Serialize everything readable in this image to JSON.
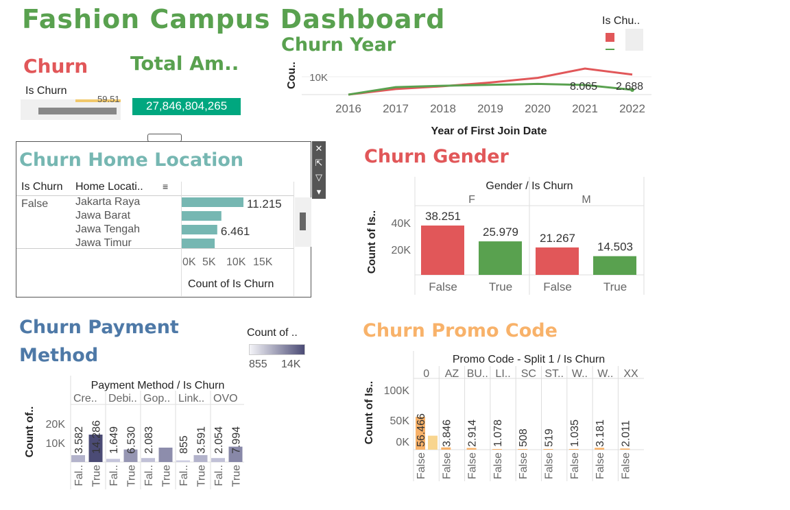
{
  "dashboard": {
    "title": "Fashion Campus Dashboard"
  },
  "colors": {
    "false": "#e15759",
    "true": "#59a14f",
    "teal": "#76b7b2",
    "blue": "#4e79a7",
    "orange": "#f8b26a",
    "purple_dark": "#4b4b75",
    "purple_light": "#d9d9e8"
  },
  "churn_kpi": {
    "title": "Churn",
    "header": "Is Churn",
    "partial_value": "59.51"
  },
  "total_amount": {
    "title": "Total Am..",
    "value": "27,846,804,265"
  },
  "churn_year": {
    "title": "Churn Year",
    "legend_title": "Is Chu..",
    "chart_data": {
      "type": "line",
      "x": [
        2016,
        2017,
        2018,
        2019,
        2020,
        2021,
        2022
      ],
      "series": [
        {
          "values": [
            6000,
            7200,
            7800,
            8600,
            9600,
            11600,
            10300
          ]
        },
        {
          "values": [
            6000,
            7600,
            7900,
            8100,
            8300,
            8065,
            2688
          ]
        }
      ],
      "y_ticks": [
        "10K"
      ],
      "ylabel": "Cou..",
      "xlabel": "Year of First Join Date",
      "data_labels": [
        "8.065",
        "2.688"
      ]
    }
  },
  "home_location": {
    "title": "Churn Home Location",
    "col_is_churn": "Is Churn",
    "col_location": "Home Locati..",
    "row_value": "False",
    "chart_data": {
      "type": "bar",
      "categories": [
        "Jakarta Raya",
        "Jawa Barat",
        "Jawa Tengah",
        "Jawa Timur"
      ],
      "values": [
        11215,
        7200,
        6461,
        6000
      ],
      "data_labels": [
        "11.215",
        "",
        "6.461",
        ""
      ],
      "x_ticks": [
        "0K",
        "5K",
        "10K",
        "15K"
      ],
      "xlabel": "Count of Is Churn"
    }
  },
  "gender": {
    "title": "Churn Gender",
    "header": "Gender / Is Churn",
    "groups": [
      "F",
      "M"
    ],
    "chart_data": {
      "type": "bar",
      "categories": [
        "False",
        "True",
        "False",
        "True"
      ],
      "values": [
        38251,
        25979,
        21267,
        14503
      ],
      "data_labels": [
        "38.251",
        "25.979",
        "21.267",
        "14.503"
      ],
      "y_ticks": [
        "40K",
        "20K"
      ],
      "ylabel": "Count of Is.."
    }
  },
  "payment": {
    "title_line1": "Churn Payment",
    "title_line2": "Method",
    "legend_title": "Count of ..",
    "legend_min": "855",
    "legend_max": "14K",
    "header": "Payment Method / Is Churn",
    "groups": [
      "Cre..",
      "Debi..",
      "Gop..",
      "Link..",
      "OVO"
    ],
    "chart_data": {
      "type": "bar",
      "categories": [
        "Fal..",
        "True",
        "Fal..",
        "True",
        "Fal..",
        "True",
        "Fal..",
        "True",
        "Fal..",
        "True"
      ],
      "values": [
        3582,
        14286,
        1649,
        6530,
        2083,
        7500,
        855,
        3591,
        2054,
        7994
      ],
      "data_labels": [
        "3.582",
        "14.286",
        "1.649",
        "6.530",
        "2.083",
        "",
        "855",
        "3.591",
        "2.054",
        "7.994"
      ],
      "y_ticks": [
        "20K",
        "10K"
      ],
      "ylabel": "Count of.."
    }
  },
  "promo": {
    "title": "Churn Promo Code",
    "header": "Promo Code - Split 1 / Is Churn",
    "groups": [
      "0",
      "AZ",
      "BU..",
      "LI..",
      "SC",
      "ST..",
      "W..",
      "W..",
      "XX"
    ],
    "chart_data": {
      "type": "bar",
      "categories": [
        "False",
        "False",
        "False",
        "False",
        "False",
        "False",
        "False",
        "False",
        "False"
      ],
      "values": [
        56466,
        3846,
        2914,
        1078,
        508,
        519,
        1035,
        3181,
        2011
      ],
      "second_bar_value": 24000,
      "data_labels": [
        "56.466",
        "3.846",
        "2.914",
        "1.078",
        "508",
        "519",
        "1.035",
        "3.181",
        "2.011"
      ],
      "y_ticks": [
        "100K",
        "50K",
        "0K"
      ],
      "ylabel": "Count of Is.."
    }
  }
}
